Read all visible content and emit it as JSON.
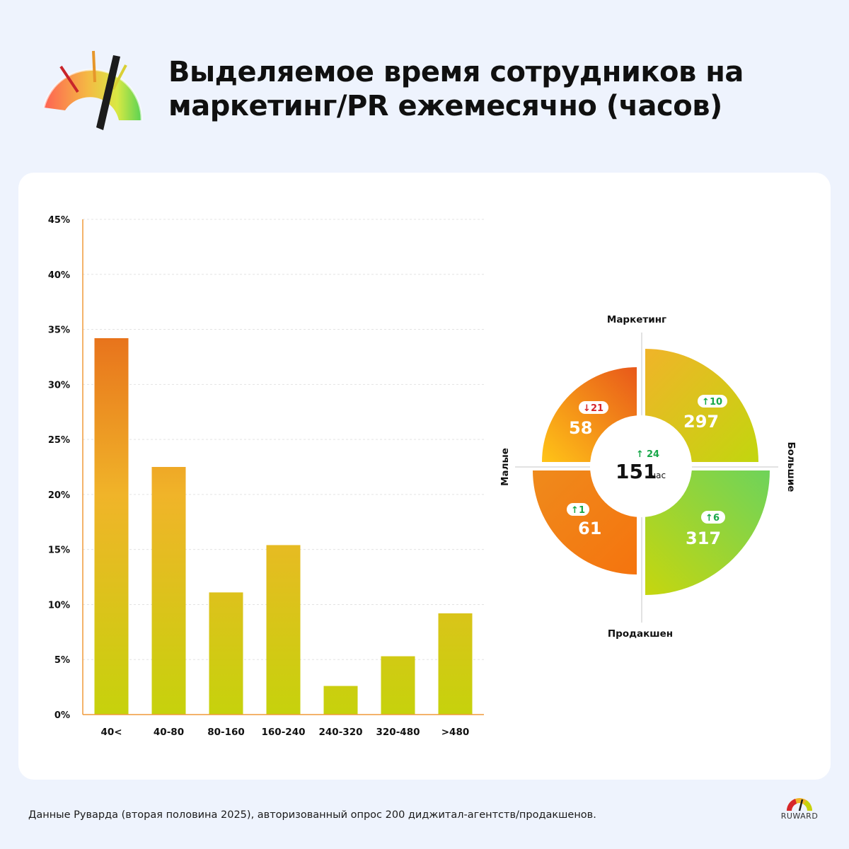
{
  "header": {
    "title_line1": "Выделяемое время сотрудников на",
    "title_line2": "маркетинг/PR ежемесячно (часов)",
    "icon": "speedometer-gauge-icon"
  },
  "chart_data": [
    {
      "type": "bar",
      "categories": [
        "40<",
        "40-80",
        "80-160",
        "160-240",
        "240-320",
        "320-480",
        ">480"
      ],
      "values": [
        34.2,
        22.5,
        11.1,
        15.4,
        2.6,
        5.3,
        9.2
      ],
      "ylim": [
        0,
        45
      ],
      "yticks": [
        "0%",
        "5%",
        "10%",
        "15%",
        "20%",
        "25%",
        "30%",
        "35%",
        "40%",
        "45%"
      ],
      "grid": true,
      "colors": {
        "top": "#e8731c",
        "mid": "#f0b429",
        "bottom": "#c6d20c"
      }
    },
    {
      "type": "quadrant",
      "axes": {
        "top": "Маркетинг",
        "bottom": "Продакшен",
        "left": "Малые",
        "right": "Большие"
      },
      "center": {
        "value": "151",
        "unit": "час",
        "delta": "24",
        "direction": "up"
      },
      "quadrants": [
        {
          "position": "top-left",
          "value": "58",
          "delta": "21",
          "direction": "down"
        },
        {
          "position": "top-right",
          "value": "297",
          "delta": "10",
          "direction": "up"
        },
        {
          "position": "bottom-left",
          "value": "61",
          "delta": "1",
          "direction": "up"
        },
        {
          "position": "bottom-right",
          "value": "317",
          "delta": "6",
          "direction": "up"
        }
      ],
      "colors": {
        "up": "#19a84a",
        "down": "#d6262b"
      }
    }
  ],
  "footer": {
    "note": "Данные Руварда (вторая половина 2025), авторизованный опрос 200 диджитал-агентств/продакшенов.",
    "brand": "RUWARD"
  }
}
